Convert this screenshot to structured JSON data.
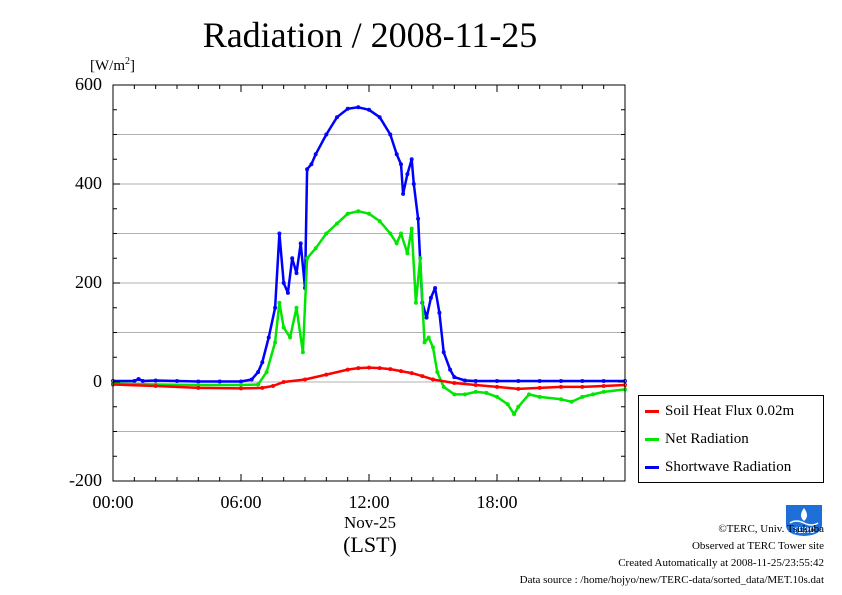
{
  "chart_data": {
    "type": "line",
    "title": "Radiation / 2008-11-25",
    "ylabel": "[W/m2]",
    "ylabel_base": "[W/m",
    "ylabel_sup": "2",
    "ylabel_close": "]",
    "ylim": [
      -200,
      600
    ],
    "xlim": [
      0,
      24
    ],
    "yticks": [
      {
        "value": -200,
        "label": "-200"
      },
      {
        "value": 0,
        "label": "0"
      },
      {
        "value": 200,
        "label": "200"
      },
      {
        "value": 400,
        "label": "400"
      },
      {
        "value": 600,
        "label": "600"
      }
    ],
    "xticks": [
      {
        "value": 0,
        "label": "00:00"
      },
      {
        "value": 6,
        "label": "06:00"
      },
      {
        "value": 12,
        "label": "12:00"
      },
      {
        "value": 18,
        "label": "18:00"
      }
    ],
    "xdate": "Nov-25",
    "xunit": "(LST)",
    "grid": true,
    "legend_position": "right-bottom outside",
    "series": [
      {
        "name": "Shortwave Radiation",
        "color": "#0000ff",
        "x": [
          0,
          1,
          1.2,
          1.4,
          2,
          3,
          4,
          5,
          6,
          6.5,
          6.8,
          7,
          7.3,
          7.6,
          7.8,
          8,
          8.2,
          8.4,
          8.6,
          8.8,
          9,
          9.1,
          9.3,
          9.5,
          10,
          10.5,
          11,
          11.5,
          12,
          12.5,
          13,
          13.3,
          13.5,
          13.6,
          13.8,
          14,
          14.1,
          14.3,
          14.5,
          14.7,
          14.9,
          15.1,
          15.3,
          15.5,
          15.8,
          16,
          16.5,
          17,
          18,
          19,
          20,
          21,
          22,
          23,
          24
        ],
        "y": [
          2,
          2,
          6,
          2,
          3,
          2,
          1,
          1,
          1,
          5,
          20,
          40,
          90,
          150,
          300,
          200,
          180,
          250,
          220,
          280,
          190,
          430,
          440,
          460,
          500,
          535,
          552,
          555,
          550,
          535,
          500,
          460,
          440,
          380,
          420,
          450,
          400,
          330,
          160,
          130,
          170,
          190,
          140,
          60,
          25,
          10,
          3,
          2,
          2,
          2,
          2,
          2,
          2,
          2,
          2
        ]
      },
      {
        "name": "Net Radiation",
        "color": "#00e600",
        "x": [
          0,
          2,
          4,
          6,
          6.8,
          7.2,
          7.6,
          7.8,
          8,
          8.3,
          8.6,
          8.9,
          9.1,
          9.5,
          10,
          10.5,
          11,
          11.5,
          12,
          12.5,
          13,
          13.3,
          13.5,
          13.8,
          14,
          14.2,
          14.4,
          14.6,
          14.8,
          15,
          15.2,
          15.5,
          16,
          16.5,
          17,
          17.5,
          18,
          18.5,
          18.8,
          19,
          19.5,
          20,
          21,
          21.5,
          22,
          22.5,
          23,
          24
        ],
        "y": [
          -3,
          -5,
          -6,
          -6,
          -5,
          20,
          80,
          160,
          110,
          90,
          150,
          60,
          250,
          270,
          300,
          320,
          340,
          345,
          340,
          325,
          300,
          280,
          300,
          260,
          310,
          160,
          250,
          80,
          90,
          70,
          20,
          -10,
          -25,
          -25,
          -20,
          -22,
          -30,
          -45,
          -65,
          -50,
          -25,
          -30,
          -35,
          -40,
          -30,
          -25,
          -20,
          -15
        ]
      },
      {
        "name": "Soil Heat Flux 0.02m",
        "color": "#ff0000",
        "x": [
          0,
          2,
          4,
          6,
          7,
          7.5,
          8,
          9,
          10,
          11,
          11.5,
          12,
          12.5,
          13,
          13.5,
          14,
          14.5,
          15,
          16,
          17,
          18,
          19,
          20,
          21,
          22,
          23,
          24
        ],
        "y": [
          -5,
          -8,
          -12,
          -13,
          -12,
          -8,
          0,
          5,
          15,
          25,
          28,
          29,
          28,
          26,
          22,
          18,
          12,
          5,
          -2,
          -6,
          -10,
          -14,
          -12,
          -10,
          -10,
          -8,
          -6
        ]
      }
    ]
  },
  "legend": {
    "items": [
      {
        "label": "Soil Heat Flux 0.02m",
        "color": "#ff0000"
      },
      {
        "label": "Net Radiation",
        "color": "#00e600"
      },
      {
        "label": "Shortwave Radiation",
        "color": "#0000ff"
      }
    ]
  },
  "footer": {
    "copyright": "©TERC, Univ. Tsukuba",
    "observed": "Observed at TERC Tower site",
    "created": "Created Automatically at 2008-11-25/23:55:42",
    "source": "Data source : /home/hojyo/new/TERC-data/sorted_data/MET.10s.dat"
  },
  "logo": {
    "text": "TERC",
    "color": "#1e6fd8"
  }
}
